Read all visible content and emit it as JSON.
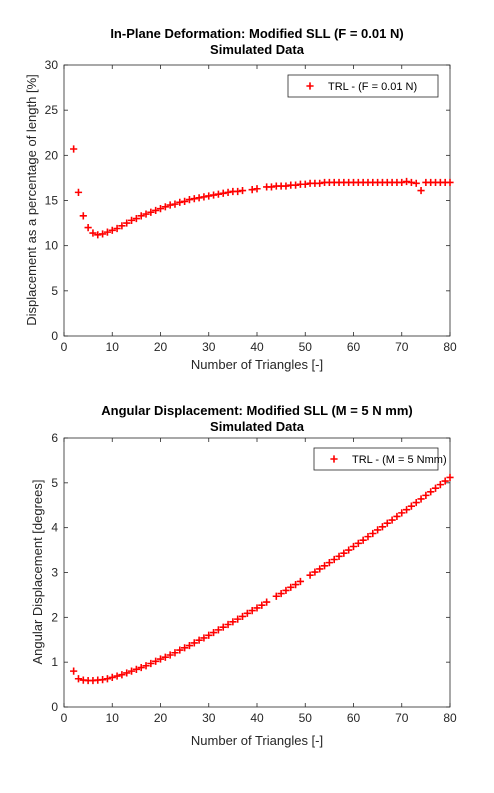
{
  "chart_data": [
    {
      "type": "scatter",
      "title": "In-Plane Deformation: Modified SLL (F = 0.01 N)",
      "subtitle": "Simulated Data",
      "xlabel": "Number of Triangles [-]",
      "ylabel": "Displacement as a percentage of length [%]",
      "xlim": [
        0,
        80
      ],
      "ylim": [
        0,
        30
      ],
      "xticks": [
        "0",
        "10",
        "20",
        "30",
        "40",
        "50",
        "60",
        "70",
        "80"
      ],
      "yticks": [
        "0",
        "5",
        "10",
        "15",
        "20",
        "25",
        "30"
      ],
      "grid": false,
      "legend_position": "top-right",
      "marker_color": "#ff0000",
      "series": [
        {
          "name": "TRL - (F = 0.01 N)",
          "x": [
            2,
            3,
            4,
            5,
            6,
            7,
            8,
            9,
            10,
            11,
            12,
            13,
            14,
            15,
            16,
            17,
            18,
            19,
            20,
            21,
            22,
            23,
            24,
            25,
            26,
            27,
            28,
            29,
            30,
            31,
            32,
            33,
            34,
            35,
            36,
            37,
            39,
            40,
            42,
            43,
            44,
            45,
            46,
            47,
            48,
            49,
            50,
            51,
            52,
            53,
            54,
            55,
            56,
            57,
            58,
            59,
            60,
            61,
            62,
            63,
            64,
            65,
            66,
            67,
            68,
            69,
            70,
            71,
            72,
            73,
            74,
            75,
            76,
            77,
            78,
            79,
            80
          ],
          "y": [
            20.7,
            15.9,
            13.3,
            12.0,
            11.4,
            11.2,
            11.3,
            11.5,
            11.7,
            11.9,
            12.2,
            12.5,
            12.8,
            13.0,
            13.3,
            13.5,
            13.7,
            13.9,
            14.1,
            14.3,
            14.5,
            14.6,
            14.8,
            14.9,
            15.1,
            15.2,
            15.3,
            15.4,
            15.5,
            15.6,
            15.7,
            15.8,
            15.9,
            16.0,
            16.0,
            16.1,
            16.2,
            16.3,
            16.5,
            16.5,
            16.6,
            16.6,
            16.6,
            16.7,
            16.7,
            16.8,
            16.8,
            16.9,
            16.9,
            16.9,
            17.0,
            17.0,
            17.0,
            17.0,
            17.0,
            17.0,
            17.0,
            17.0,
            17.0,
            17.0,
            17.0,
            17.0,
            17.0,
            17.0,
            17.0,
            17.0,
            17.0,
            17.1,
            17.0,
            16.9,
            16.1,
            17.0,
            17.0,
            17.0,
            17.0,
            17.0,
            17.0
          ]
        }
      ]
    },
    {
      "type": "scatter",
      "title": "Angular Displacement: Modified SLL (M = 5 N mm)",
      "subtitle": "Simulated Data",
      "xlabel": "Number of Triangles [-]",
      "ylabel": "Angular Displacement [degrees]",
      "xlim": [
        0,
        80
      ],
      "ylim": [
        0,
        6
      ],
      "xticks": [
        "0",
        "10",
        "20",
        "30",
        "40",
        "50",
        "60",
        "70",
        "80"
      ],
      "yticks": [
        "0",
        "1",
        "2",
        "3",
        "4",
        "5",
        "6"
      ],
      "grid": false,
      "legend_position": "top-right",
      "marker_color": "#ff0000",
      "series": [
        {
          "name": "TRL - (M = 5 Nmm)",
          "x": [
            2,
            3,
            4,
            5,
            6,
            7,
            8,
            9,
            10,
            11,
            12,
            13,
            14,
            15,
            16,
            17,
            18,
            19,
            20,
            21,
            22,
            23,
            24,
            25,
            26,
            27,
            28,
            29,
            30,
            31,
            32,
            33,
            34,
            35,
            36,
            37,
            38,
            39,
            40,
            41,
            42,
            44,
            45,
            46,
            47,
            48,
            49,
            51,
            52,
            53,
            54,
            55,
            56,
            57,
            58,
            59,
            60,
            61,
            62,
            63,
            64,
            65,
            66,
            67,
            68,
            69,
            70,
            71,
            72,
            73,
            74,
            75,
            76,
            77,
            78,
            79,
            80
          ],
          "y": [
            0.8,
            0.63,
            0.6,
            0.59,
            0.59,
            0.6,
            0.61,
            0.63,
            0.66,
            0.69,
            0.72,
            0.76,
            0.8,
            0.84,
            0.88,
            0.92,
            0.97,
            1.02,
            1.07,
            1.11,
            1.16,
            1.21,
            1.27,
            1.32,
            1.37,
            1.43,
            1.49,
            1.54,
            1.6,
            1.66,
            1.72,
            1.78,
            1.84,
            1.9,
            1.96,
            2.02,
            2.09,
            2.15,
            2.21,
            2.27,
            2.34,
            2.47,
            2.53,
            2.6,
            2.67,
            2.73,
            2.8,
            2.94,
            3.01,
            3.08,
            3.15,
            3.22,
            3.29,
            3.36,
            3.43,
            3.5,
            3.58,
            3.65,
            3.72,
            3.8,
            3.87,
            3.95,
            4.02,
            4.1,
            4.17,
            4.25,
            4.33,
            4.4,
            4.48,
            4.56,
            4.64,
            4.72,
            4.8,
            4.88,
            4.96,
            5.04,
            5.12
          ]
        }
      ]
    }
  ]
}
